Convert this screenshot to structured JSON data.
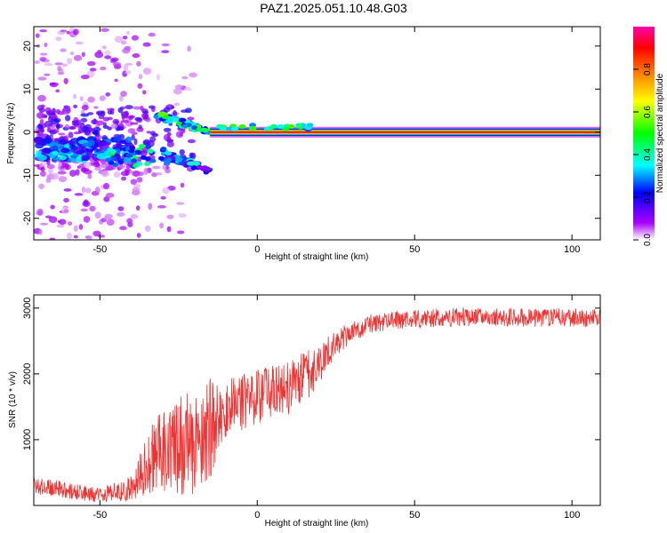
{
  "figure": {
    "title": "PAZ1.2025.051.10.48.G03"
  },
  "chart_data": [
    {
      "type": "heatmap",
      "xlabel": "Height of straight line (km)",
      "ylabel": "Frequency (Hz)",
      "xlim": [
        -71,
        109
      ],
      "ylim": [
        -25,
        24.5
      ],
      "xticks": [
        -50,
        0,
        50,
        100
      ],
      "yticks": [
        -20,
        -10,
        0,
        10,
        20
      ],
      "colorbar": {
        "label": "Normalized spectral amplitude",
        "range": [
          0,
          1
        ],
        "ticks": [
          "0.0",
          "0.2",
          "0.4",
          "0.6",
          "0.8"
        ],
        "colors": [
          "#ffffff",
          "#aa00ff",
          "#0000ff",
          "#00ffff",
          "#00ff00",
          "#ffff00",
          "#ff8000",
          "#ff0000",
          "#ff00aa"
        ]
      },
      "features": [
        {
          "name": "main_tone",
          "x_range": [
            -15,
            109
          ],
          "freq_hz": 0,
          "amplitude": 0.95
        },
        {
          "name": "scatter_cloud",
          "x_range": [
            -70,
            -40
          ],
          "freq_range_hz": [
            -25,
            24
          ]
        },
        {
          "name": "upper_branch",
          "x_range": [
            -32,
            -15
          ],
          "freq_range_hz": [
            4,
            0
          ],
          "amplitude": 0.55
        },
        {
          "name": "lower_branch",
          "x_range": [
            -30,
            -15
          ],
          "freq_range_hz": [
            -5,
            -9
          ],
          "amplitude": 0.35
        }
      ]
    },
    {
      "type": "line",
      "xlabel": "Height of straight line (km)",
      "ylabel": "SNR (10 * v/v)",
      "xlim": [
        -71,
        109
      ],
      "ylim": [
        0,
        3200
      ],
      "xticks": [
        -50,
        0,
        50,
        100
      ],
      "yticks": [
        1000,
        2000,
        3000
      ],
      "color": "#ee3333",
      "envelope": [
        {
          "x": -71,
          "mean": 320,
          "amp": 140
        },
        {
          "x": -60,
          "mean": 220,
          "amp": 130
        },
        {
          "x": -50,
          "mean": 160,
          "amp": 110
        },
        {
          "x": -40,
          "mean": 260,
          "amp": 200
        },
        {
          "x": -35,
          "mean": 650,
          "amp": 480
        },
        {
          "x": -30,
          "mean": 850,
          "amp": 650
        },
        {
          "x": -25,
          "mean": 900,
          "amp": 780
        },
        {
          "x": -20,
          "mean": 950,
          "amp": 820
        },
        {
          "x": -15,
          "mean": 1150,
          "amp": 800
        },
        {
          "x": -11,
          "mean": 1450,
          "amp": 450
        },
        {
          "x": 0,
          "mean": 1650,
          "amp": 420
        },
        {
          "x": 10,
          "mean": 1800,
          "amp": 420
        },
        {
          "x": 18,
          "mean": 2050,
          "amp": 350
        },
        {
          "x": 25,
          "mean": 2480,
          "amp": 200
        },
        {
          "x": 35,
          "mean": 2760,
          "amp": 140
        },
        {
          "x": 50,
          "mean": 2840,
          "amp": 140
        },
        {
          "x": 70,
          "mean": 2870,
          "amp": 140
        },
        {
          "x": 90,
          "mean": 2850,
          "amp": 140
        },
        {
          "x": 109,
          "mean": 2860,
          "amp": 140
        }
      ]
    }
  ]
}
